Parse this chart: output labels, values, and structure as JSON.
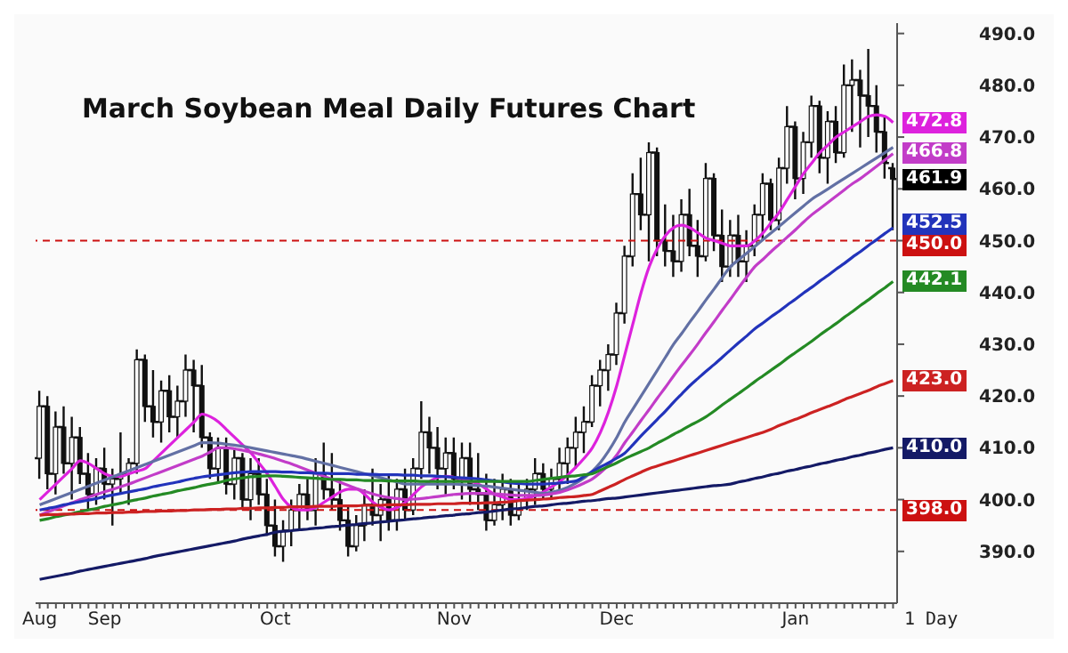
{
  "chart_data": {
    "type": "candlestick",
    "title": "March Soybean Meal Daily Futures Chart",
    "categories": [
      "Aug",
      null,
      null,
      null,
      null,
      null,
      null,
      null,
      "Sep",
      null,
      null,
      null,
      null,
      null,
      null,
      null,
      null,
      null,
      null,
      null,
      null,
      null,
      null,
      null,
      null,
      null,
      null,
      null,
      null,
      "Oct",
      null,
      null,
      null,
      null,
      null,
      null,
      null,
      null,
      null,
      null,
      null,
      null,
      null,
      null,
      null,
      null,
      null,
      null,
      null,
      null,
      null,
      "Nov",
      null,
      null,
      null,
      null,
      null,
      null,
      null,
      null,
      null,
      null,
      null,
      null,
      null,
      null,
      null,
      null,
      null,
      null,
      null,
      "Dec",
      null,
      null,
      null,
      null,
      null,
      null,
      null,
      null,
      null,
      null,
      null,
      null,
      null,
      null,
      null,
      null,
      null,
      null,
      null,
      null,
      null,
      "Jan",
      null,
      null,
      null,
      null,
      null,
      null,
      null,
      null,
      null,
      null,
      null,
      null
    ],
    "ohlc": [
      [
        408,
        421,
        404,
        418
      ],
      [
        418,
        420,
        402,
        405
      ],
      [
        405,
        417,
        401,
        414
      ],
      [
        414,
        418,
        405,
        407
      ],
      [
        407,
        416,
        400,
        412
      ],
      [
        412,
        414,
        403,
        405
      ],
      [
        405,
        409,
        398,
        401
      ],
      [
        401,
        408,
        399,
        406
      ],
      [
        406,
        410,
        400,
        403
      ],
      [
        403,
        406,
        395,
        404
      ],
      [
        404,
        413,
        401,
        405
      ],
      [
        405,
        408,
        399,
        407
      ],
      [
        407,
        429,
        405,
        427
      ],
      [
        427,
        428,
        415,
        418
      ],
      [
        418,
        425,
        412,
        415
      ],
      [
        415,
        423,
        411,
        421
      ],
      [
        421,
        424,
        413,
        416
      ],
      [
        416,
        422,
        412,
        419
      ],
      [
        419,
        428,
        416,
        425
      ],
      [
        425,
        427,
        413,
        422
      ],
      [
        422,
        426,
        410,
        412
      ],
      [
        412,
        413,
        404,
        406
      ],
      [
        406,
        412,
        403,
        410
      ],
      [
        410,
        412,
        401,
        403
      ],
      [
        403,
        410,
        400,
        408
      ],
      [
        408,
        409,
        398,
        400
      ],
      [
        400,
        408,
        396,
        405
      ],
      [
        405,
        408,
        399,
        401
      ],
      [
        401,
        404,
        393,
        395
      ],
      [
        395,
        400,
        389,
        391
      ],
      [
        391,
        396,
        388,
        394
      ],
      [
        394,
        400,
        391,
        398
      ],
      [
        398,
        403,
        394,
        401
      ],
      [
        401,
        404,
        396,
        398
      ],
      [
        398,
        408,
        395,
        405
      ],
      [
        405,
        411,
        400,
        402
      ],
      [
        402,
        409,
        398,
        400
      ],
      [
        400,
        404,
        394,
        396
      ],
      [
        396,
        399,
        389,
        391
      ],
      [
        391,
        397,
        390,
        395
      ],
      [
        395,
        402,
        392,
        399
      ],
      [
        399,
        406,
        395,
        397
      ],
      [
        397,
        403,
        392,
        400
      ],
      [
        400,
        405,
        394,
        396
      ],
      [
        396,
        404,
        394,
        402
      ],
      [
        402,
        406,
        396,
        398
      ],
      [
        398,
        408,
        397,
        406
      ],
      [
        406,
        419,
        404,
        413
      ],
      [
        413,
        416,
        405,
        410
      ],
      [
        410,
        414,
        402,
        406
      ],
      [
        406,
        412,
        401,
        409
      ],
      [
        409,
        412,
        402,
        404
      ],
      [
        404,
        411,
        400,
        408
      ],
      [
        408,
        411,
        399,
        402
      ],
      [
        402,
        409,
        398,
        401
      ],
      [
        401,
        405,
        394,
        396
      ],
      [
        396,
        404,
        395,
        399
      ],
      [
        399,
        405,
        396,
        402
      ],
      [
        402,
        404,
        395,
        397
      ],
      [
        397,
        403,
        396,
        400
      ],
      [
        400,
        404,
        398,
        402
      ],
      [
        402,
        408,
        399,
        405
      ],
      [
        405,
        407,
        400,
        402
      ],
      [
        402,
        406,
        400,
        404
      ],
      [
        404,
        410,
        402,
        407
      ],
      [
        407,
        412,
        403,
        410
      ],
      [
        410,
        416,
        406,
        413
      ],
      [
        413,
        418,
        409,
        415
      ],
      [
        415,
        424,
        414,
        422
      ],
      [
        422,
        427,
        418,
        425
      ],
      [
        425,
        430,
        421,
        428
      ],
      [
        428,
        438,
        426,
        436
      ],
      [
        436,
        449,
        434,
        447
      ],
      [
        447,
        463,
        445,
        459
      ],
      [
        459,
        466,
        452,
        455
      ],
      [
        455,
        469,
        446,
        467
      ],
      [
        467,
        468,
        447,
        450
      ],
      [
        450,
        457,
        445,
        448
      ],
      [
        448,
        455,
        443,
        446
      ],
      [
        446,
        458,
        444,
        455
      ],
      [
        455,
        460,
        447,
        449
      ],
      [
        449,
        454,
        443,
        447
      ],
      [
        447,
        465,
        446,
        462
      ],
      [
        462,
        463,
        448,
        451
      ],
      [
        451,
        456,
        442,
        445
      ],
      [
        445,
        454,
        443,
        451
      ],
      [
        451,
        455,
        443,
        446
      ],
      [
        446,
        452,
        442,
        449
      ],
      [
        449,
        457,
        447,
        455
      ],
      [
        455,
        463,
        450,
        461
      ],
      [
        461,
        462,
        452,
        454
      ],
      [
        454,
        466,
        452,
        464
      ],
      [
        464,
        476,
        461,
        472
      ],
      [
        472,
        473,
        458,
        462
      ],
      [
        462,
        471,
        459,
        469
      ],
      [
        469,
        478,
        466,
        476
      ],
      [
        476,
        477,
        463,
        466
      ],
      [
        466,
        475,
        461,
        473
      ],
      [
        473,
        476,
        465,
        467
      ],
      [
        467,
        484,
        466,
        480
      ],
      [
        480,
        485,
        471,
        481
      ],
      [
        481,
        483,
        468,
        478
      ],
      [
        478,
        487,
        470,
        476
      ],
      [
        476,
        480,
        467,
        471
      ],
      [
        471,
        474,
        462,
        465
      ],
      [
        464,
        465,
        452,
        461.9
      ]
    ],
    "series": [
      {
        "type": "line",
        "color": "#dd22dd",
        "values": [
          400.0,
          401.5,
          403.0,
          404.5,
          406.0,
          407.5,
          407.0,
          406.0,
          405.0,
          404.5,
          404.5,
          405.0,
          405.5,
          406.0,
          407.5,
          409.0,
          410.5,
          412.0,
          413.5,
          415.0,
          416.5,
          416.0,
          415.0,
          413.5,
          412.0,
          410.5,
          409.0,
          407.0,
          405.0,
          402.5,
          400.0,
          398.5,
          398.0,
          398.0,
          398.5,
          399.5,
          400.5,
          401.5,
          402.0,
          402.0,
          401.0,
          399.5,
          398.5,
          398.0,
          398.5,
          399.5,
          401.0,
          402.5,
          403.5,
          404.3,
          404.5,
          404.3,
          404.0,
          403.5,
          403.0,
          402.0,
          401.0,
          400.5,
          400.0,
          400.0,
          400.3,
          400.8,
          401.5,
          402.5,
          403.5,
          404.8,
          406.3,
          408.0,
          410.0,
          413.0,
          417.0,
          422.0,
          428.0,
          434.0,
          440.0,
          445.0,
          448.5,
          451.0,
          452.5,
          453.0,
          452.5,
          451.5,
          450.5,
          450.0,
          449.5,
          449.0,
          449.0,
          449.0,
          450.0,
          451.5,
          453.5,
          455.5,
          458.0,
          460.5,
          463.0,
          465.0,
          467.0,
          468.5,
          470.0,
          471.0,
          472.0,
          473.0,
          474.0,
          474.3,
          474.0,
          472.8
        ],
        "value_labels": [
          null,
          null,
          null,
          null,
          null,
          null,
          null,
          null,
          null,
          null,
          null,
          null,
          null,
          null,
          null,
          null,
          null,
          null,
          null,
          null,
          null,
          null,
          null,
          null,
          null,
          null,
          null,
          null,
          null,
          null,
          null,
          null,
          null,
          null,
          null,
          null,
          null,
          null,
          null,
          null,
          null,
          null,
          null,
          null,
          null,
          null,
          null,
          null,
          null,
          null,
          null,
          null,
          null,
          null,
          null,
          null,
          null,
          null,
          null,
          null,
          null,
          null,
          null,
          null,
          null,
          null,
          null,
          null,
          null,
          null,
          null,
          null,
          null,
          null,
          null,
          null,
          null,
          null,
          null,
          null,
          null,
          null,
          null,
          null,
          null,
          null,
          null,
          null,
          null,
          null,
          null,
          null,
          null,
          null,
          null,
          null,
          null,
          null,
          null,
          null,
          null,
          null,
          null,
          null,
          null,
          "472.8"
        ]
      },
      {
        "type": "line",
        "color": "#6270a4",
        "values": [
          399.0,
          399.6,
          400.2,
          400.8,
          401.4,
          402.0,
          402.6,
          403.2,
          403.8,
          404.4,
          405.0,
          405.6,
          406.2,
          406.8,
          407.4,
          408.0,
          408.6,
          409.2,
          409.8,
          410.4,
          411.0,
          411.0,
          410.9,
          410.7,
          410.5,
          410.3,
          410.0,
          409.7,
          409.4,
          409.1,
          408.8,
          408.5,
          408.2,
          407.8,
          407.4,
          407.0,
          406.6,
          406.2,
          405.8,
          405.4,
          405.0,
          404.6,
          404.2,
          403.8,
          403.4,
          403.0,
          403.0,
          403.0,
          403.0,
          403.0,
          403.0,
          403.0,
          402.9,
          402.8,
          402.7,
          402.6,
          402.4,
          402.2,
          402.0,
          401.8,
          401.6,
          401.4,
          401.2,
          401.4,
          401.8,
          402.4,
          403.2,
          404.2,
          405.5,
          407.2,
          409.4,
          412.0,
          415.0,
          417.5,
          420.0,
          422.5,
          425.0,
          427.5,
          430.0,
          432.1,
          434.3,
          436.4,
          438.6,
          440.7,
          442.9,
          445.0,
          446.3,
          447.6,
          448.9,
          450.2,
          451.5,
          452.8,
          454.1,
          455.4,
          456.7,
          458.0,
          459.0,
          460.0,
          461.0,
          462.0,
          463.0,
          464.0,
          465.0,
          466.0,
          467.0,
          468.0
        ]
      },
      {
        "type": "line",
        "color": "#c23cc8",
        "values": [
          397.0,
          397.6,
          398.2,
          398.8,
          399.4,
          400.0,
          400.5,
          401.0,
          401.5,
          402.0,
          402.5,
          403.0,
          403.6,
          404.2,
          404.8,
          405.4,
          406.0,
          406.6,
          407.2,
          407.8,
          408.4,
          409.2,
          410.0,
          410.0,
          409.8,
          409.5,
          409.2,
          408.8,
          408.4,
          407.9,
          407.4,
          406.9,
          406.3,
          405.7,
          405.1,
          404.5,
          403.9,
          403.3,
          402.7,
          402.1,
          401.6,
          401.1,
          400.7,
          400.4,
          400.2,
          400.0,
          400.1,
          400.2,
          400.4,
          400.6,
          400.8,
          401.0,
          401.1,
          401.2,
          401.2,
          401.2,
          401.1,
          401.0,
          400.9,
          400.8,
          400.8,
          400.8,
          400.9,
          401.1,
          401.4,
          401.9,
          402.5,
          403.2,
          404.0,
          405.2,
          406.7,
          408.6,
          411.0,
          413.1,
          415.3,
          417.4,
          419.6,
          421.7,
          423.9,
          426.0,
          428.0,
          430.1,
          432.3,
          434.4,
          436.6,
          438.7,
          440.9,
          443.0,
          445.0,
          446.4,
          447.9,
          449.3,
          450.7,
          452.1,
          453.6,
          455.0,
          456.2,
          457.4,
          458.6,
          459.8,
          461.0,
          462.0,
          463.2,
          464.4,
          465.6,
          466.8
        ],
        "value_labels": [
          null,
          null,
          null,
          null,
          null,
          null,
          null,
          null,
          null,
          null,
          null,
          null,
          null,
          null,
          null,
          null,
          null,
          null,
          null,
          null,
          null,
          null,
          null,
          null,
          null,
          null,
          null,
          null,
          null,
          null,
          null,
          null,
          null,
          null,
          null,
          null,
          null,
          null,
          null,
          null,
          null,
          null,
          null,
          null,
          null,
          null,
          null,
          null,
          null,
          null,
          null,
          null,
          null,
          null,
          null,
          null,
          null,
          null,
          null,
          null,
          null,
          null,
          null,
          null,
          null,
          null,
          null,
          null,
          null,
          null,
          null,
          null,
          null,
          null,
          null,
          null,
          null,
          null,
          null,
          null,
          null,
          null,
          null,
          null,
          null,
          null,
          null,
          null,
          null,
          null,
          null,
          null,
          null,
          null,
          null,
          null,
          null,
          null,
          null,
          null,
          null,
          null,
          null,
          null,
          null,
          "466.8"
        ]
      },
      {
        "type": "line",
        "color": "#2233bb",
        "values": [
          398.0,
          398.3,
          398.6,
          399.0,
          399.3,
          399.6,
          399.9,
          400.2,
          400.6,
          400.9,
          401.2,
          401.5,
          401.8,
          402.1,
          402.5,
          402.8,
          403.1,
          403.4,
          403.8,
          404.1,
          404.4,
          404.6,
          404.8,
          405.0,
          405.2,
          405.3,
          405.4,
          405.4,
          405.4,
          405.4,
          405.3,
          405.3,
          405.2,
          405.2,
          405.1,
          405.1,
          405.0,
          405.0,
          405.0,
          404.9,
          404.9,
          404.9,
          404.8,
          404.8,
          404.8,
          404.7,
          404.7,
          404.6,
          404.6,
          404.5,
          404.4,
          404.3,
          404.2,
          404.1,
          404.0,
          403.8,
          403.6,
          403.4,
          403.2,
          403.1,
          403.0,
          403.0,
          403.0,
          403.1,
          403.2,
          403.4,
          403.6,
          404.5,
          405.4,
          406.3,
          407.1,
          408.0,
          409.0,
          410.6,
          412.3,
          413.9,
          415.5,
          417.1,
          418.8,
          420.4,
          422.0,
          423.4,
          424.8,
          426.1,
          427.5,
          428.9,
          430.3,
          431.6,
          433.0,
          434.1,
          435.3,
          436.4,
          437.6,
          438.7,
          439.9,
          441.0,
          442.2,
          443.3,
          444.5,
          445.6,
          446.8,
          447.9,
          449.1,
          450.2,
          451.4,
          452.5
        ],
        "value_labels": [
          null,
          null,
          null,
          null,
          null,
          null,
          null,
          null,
          null,
          null,
          null,
          null,
          null,
          null,
          null,
          null,
          null,
          null,
          null,
          null,
          null,
          null,
          null,
          null,
          null,
          null,
          null,
          null,
          null,
          null,
          null,
          null,
          null,
          null,
          null,
          null,
          null,
          null,
          null,
          null,
          null,
          null,
          null,
          null,
          null,
          null,
          null,
          null,
          null,
          null,
          null,
          null,
          null,
          null,
          null,
          null,
          null,
          null,
          null,
          null,
          null,
          null,
          null,
          null,
          null,
          null,
          null,
          null,
          null,
          null,
          null,
          null,
          null,
          null,
          null,
          null,
          null,
          null,
          null,
          null,
          null,
          null,
          null,
          null,
          null,
          null,
          null,
          null,
          null,
          null,
          null,
          null,
          null,
          null,
          null,
          null,
          null,
          null,
          null,
          null,
          null,
          null,
          null,
          null,
          null,
          "452.5"
        ]
      },
      {
        "type": "line",
        "color": "#248a24",
        "values": [
          396.0,
          396.3,
          396.7,
          397.0,
          397.3,
          397.7,
          398.0,
          398.3,
          398.7,
          399.0,
          399.3,
          399.7,
          400.0,
          400.3,
          400.7,
          401.0,
          401.3,
          401.7,
          402.0,
          402.3,
          402.7,
          403.0,
          403.3,
          403.7,
          404.0,
          404.2,
          404.4,
          404.5,
          404.6,
          404.6,
          404.5,
          404.4,
          404.3,
          404.2,
          404.1,
          404.0,
          403.9,
          403.9,
          403.8,
          403.8,
          403.7,
          403.7,
          403.7,
          403.6,
          403.6,
          403.6,
          403.6,
          403.5,
          403.5,
          403.5,
          403.5,
          403.5,
          403.5,
          403.5,
          403.5,
          403.5,
          403.5,
          403.5,
          403.5,
          403.5,
          403.5,
          403.7,
          403.9,
          404.1,
          404.3,
          404.5,
          404.6,
          404.8,
          405.0,
          405.7,
          406.4,
          407.1,
          407.9,
          408.6,
          409.3,
          410.0,
          410.9,
          411.7,
          412.6,
          413.4,
          414.3,
          415.1,
          416.0,
          417.1,
          418.3,
          419.4,
          420.5,
          421.6,
          422.8,
          423.9,
          425.0,
          426.1,
          427.3,
          428.4,
          429.5,
          430.6,
          431.8,
          432.9,
          434.0,
          435.2,
          436.3,
          437.5,
          438.6,
          439.8,
          440.9,
          442.1
        ],
        "value_labels": [
          null,
          null,
          null,
          null,
          null,
          null,
          null,
          null,
          null,
          null,
          null,
          null,
          null,
          null,
          null,
          null,
          null,
          null,
          null,
          null,
          null,
          null,
          null,
          null,
          null,
          null,
          null,
          null,
          null,
          null,
          null,
          null,
          null,
          null,
          null,
          null,
          null,
          null,
          null,
          null,
          null,
          null,
          null,
          null,
          null,
          null,
          null,
          null,
          null,
          null,
          null,
          null,
          null,
          null,
          null,
          null,
          null,
          null,
          null,
          null,
          null,
          null,
          null,
          null,
          null,
          null,
          null,
          null,
          null,
          null,
          null,
          null,
          null,
          null,
          null,
          null,
          null,
          null,
          null,
          null,
          null,
          null,
          null,
          null,
          null,
          null,
          null,
          null,
          null,
          null,
          null,
          null,
          null,
          null,
          null,
          null,
          null,
          null,
          null,
          null,
          null,
          null,
          null,
          null,
          null,
          "442.1"
        ]
      },
      {
        "type": "line",
        "color": "#cc2222",
        "values": [
          397.0,
          397.1,
          397.1,
          397.2,
          397.2,
          397.3,
          397.3,
          397.4,
          397.4,
          397.5,
          397.5,
          397.6,
          397.6,
          397.7,
          397.7,
          397.8,
          397.8,
          397.9,
          397.9,
          398.0,
          398.0,
          398.1,
          398.1,
          398.2,
          398.2,
          398.3,
          398.3,
          398.4,
          398.4,
          398.5,
          398.5,
          398.6,
          398.6,
          398.6,
          398.7,
          398.7,
          398.7,
          398.8,
          398.8,
          398.8,
          398.9,
          398.9,
          398.9,
          399.0,
          399.0,
          399.0,
          399.1,
          399.1,
          399.1,
          399.2,
          399.2,
          399.2,
          399.3,
          399.3,
          399.3,
          399.4,
          399.4,
          399.5,
          399.6,
          399.8,
          399.9,
          400.0,
          400.1,
          400.2,
          400.4,
          400.5,
          400.6,
          400.8,
          401.0,
          401.7,
          402.4,
          403.1,
          403.9,
          404.6,
          405.3,
          406.0,
          406.5,
          407.0,
          407.5,
          408.0,
          408.5,
          409.0,
          409.5,
          410.0,
          410.5,
          411.0,
          411.5,
          412.0,
          412.5,
          413.0,
          413.6,
          414.3,
          414.9,
          415.5,
          416.1,
          416.8,
          417.4,
          418.0,
          418.6,
          419.3,
          419.9,
          420.5,
          421.1,
          421.8,
          422.4,
          423.0
        ],
        "value_labels": [
          null,
          null,
          null,
          null,
          null,
          null,
          null,
          null,
          null,
          null,
          null,
          null,
          null,
          null,
          null,
          null,
          null,
          null,
          null,
          null,
          null,
          null,
          null,
          null,
          null,
          null,
          null,
          null,
          null,
          null,
          null,
          null,
          null,
          null,
          null,
          null,
          null,
          null,
          null,
          null,
          null,
          null,
          null,
          null,
          null,
          null,
          null,
          null,
          null,
          null,
          null,
          null,
          null,
          null,
          null,
          null,
          null,
          null,
          null,
          null,
          null,
          null,
          null,
          null,
          null,
          null,
          null,
          null,
          null,
          null,
          null,
          null,
          null,
          null,
          null,
          null,
          null,
          null,
          null,
          null,
          null,
          null,
          null,
          null,
          null,
          null,
          null,
          null,
          null,
          null,
          null,
          null,
          null,
          null,
          null,
          null,
          null,
          null,
          null,
          null,
          null,
          null,
          null,
          null,
          null,
          "423.0"
        ]
      },
      {
        "type": "line",
        "color": "#141a66",
        "values": [
          384.6,
          384.9,
          385.2,
          385.5,
          385.8,
          386.2,
          386.5,
          386.8,
          387.1,
          387.4,
          387.7,
          388.0,
          388.3,
          388.6,
          389.0,
          389.3,
          389.6,
          389.9,
          390.2,
          390.5,
          390.8,
          391.1,
          391.4,
          391.7,
          392.0,
          392.4,
          392.7,
          393.0,
          393.3,
          393.7,
          393.9,
          394.0,
          394.2,
          394.3,
          394.5,
          394.6,
          394.8,
          394.9,
          395.1,
          395.2,
          395.4,
          395.5,
          395.7,
          395.8,
          396.0,
          396.1,
          396.3,
          396.4,
          396.6,
          396.7,
          396.9,
          397.0,
          397.2,
          397.3,
          397.5,
          397.6,
          397.8,
          398.0,
          398.2,
          398.3,
          398.5,
          398.7,
          398.8,
          399.0,
          399.2,
          399.3,
          399.5,
          399.7,
          399.8,
          400.0,
          400.2,
          400.3,
          400.5,
          400.7,
          400.9,
          401.1,
          401.3,
          401.5,
          401.7,
          401.9,
          402.1,
          402.3,
          402.5,
          402.7,
          402.8,
          403.0,
          403.4,
          403.7,
          404.1,
          404.4,
          404.8,
          405.1,
          405.5,
          405.8,
          406.2,
          406.5,
          406.9,
          407.2,
          407.6,
          407.9,
          408.3,
          408.6,
          409.0,
          409.3,
          409.7,
          410.0
        ],
        "value_labels": [
          null,
          null,
          null,
          null,
          null,
          null,
          null,
          null,
          null,
          null,
          null,
          null,
          null,
          null,
          null,
          null,
          null,
          null,
          null,
          null,
          null,
          null,
          null,
          null,
          null,
          null,
          null,
          null,
          null,
          null,
          null,
          null,
          null,
          null,
          null,
          null,
          null,
          null,
          null,
          null,
          null,
          null,
          null,
          null,
          null,
          null,
          null,
          null,
          null,
          null,
          null,
          null,
          null,
          null,
          null,
          null,
          null,
          null,
          null,
          null,
          null,
          null,
          null,
          null,
          null,
          null,
          null,
          null,
          null,
          null,
          null,
          null,
          null,
          null,
          null,
          null,
          null,
          null,
          null,
          null,
          null,
          null,
          null,
          null,
          null,
          null,
          null,
          null,
          null,
          null,
          null,
          null,
          null,
          null,
          null,
          null,
          null,
          null,
          null,
          null,
          null,
          null,
          null,
          null,
          null,
          "410.0"
        ]
      }
    ],
    "ylim": [
      380,
      492
    ],
    "yticks": [
      {
        "value": 390,
        "label": "390.0"
      },
      {
        "value": 400,
        "label": "400.0"
      },
      {
        "value": 410,
        "label": "410.0"
      },
      {
        "value": 420,
        "label": "420.0"
      },
      {
        "value": 430,
        "label": "430.0"
      },
      {
        "value": 440,
        "label": "440.0"
      },
      {
        "value": 450,
        "label": "450.0"
      },
      {
        "value": 460,
        "label": "460.0"
      },
      {
        "value": 470,
        "label": "470.0"
      },
      {
        "value": 480,
        "label": "480.0"
      },
      {
        "value": 490,
        "label": "490.0"
      }
    ],
    "ref_lines": [
      {
        "axis": "y",
        "value": 450,
        "label": "450.0",
        "color": "#cc1111",
        "line_style": "dashed"
      },
      {
        "axis": "y",
        "value": 398,
        "label": "398.0",
        "color": "#cc1111",
        "line_style": "dashed"
      }
    ],
    "annotations": [
      {
        "text": "461.9",
        "y": 461.9
      },
      "1 Day"
    ]
  }
}
